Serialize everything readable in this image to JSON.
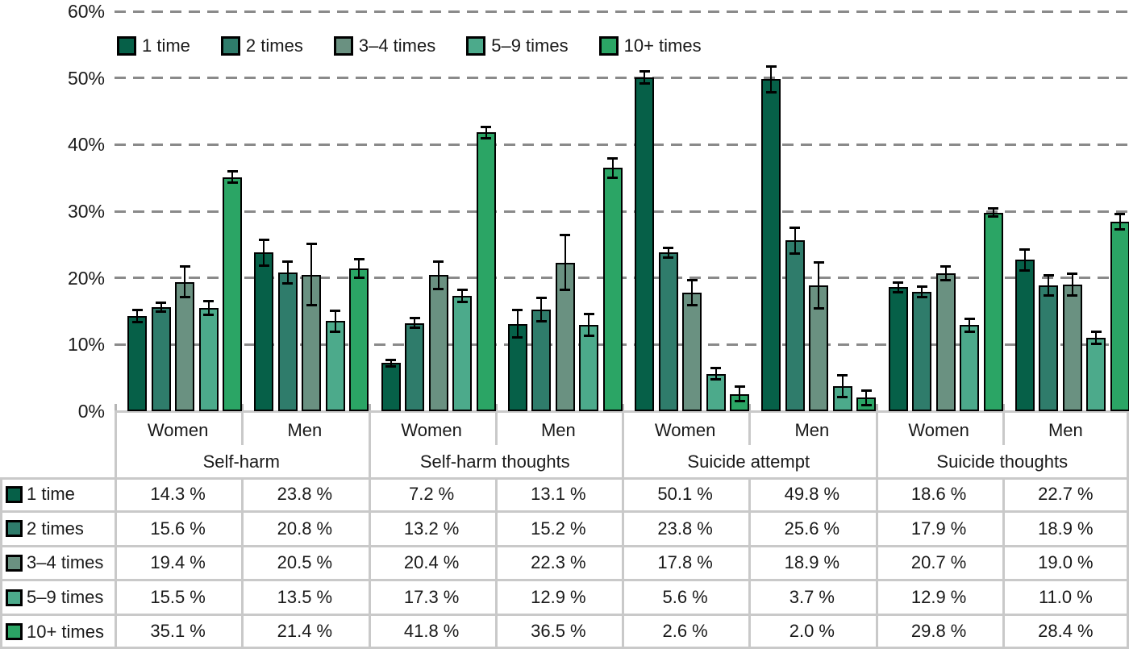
{
  "chart_data": {
    "type": "bar",
    "title": "",
    "categories": [
      "Self-harm",
      "Self-harm thoughts",
      "Suicide attempt",
      "Suicide thoughts"
    ],
    "subgroups": [
      "Women",
      "Men"
    ],
    "group_labels": [
      "Women",
      "Men",
      "Women",
      "Men",
      "Women",
      "Men",
      "Women",
      "Men"
    ],
    "xlabel": "",
    "ylabel": "",
    "ylim": [
      0,
      60
    ],
    "yticks": [
      "0%",
      "10%",
      "20%",
      "30%",
      "40%",
      "50%",
      "60%"
    ],
    "grid": "dashed-horizontal",
    "legend_position": "top-left-inside",
    "error_bars": true,
    "series": [
      {
        "name": "1 time",
        "color": "#066048",
        "values": [
          14.3,
          23.8,
          7.2,
          13.1,
          50.1,
          49.8,
          18.6,
          22.7
        ],
        "errors": [
          1.0,
          2.0,
          0.6,
          2.1,
          1.0,
          2.0,
          0.8,
          1.6
        ]
      },
      {
        "name": "2 times",
        "color": "#2f7c6b",
        "values": [
          15.6,
          20.8,
          13.2,
          15.2,
          23.8,
          25.6,
          17.9,
          18.9
        ],
        "errors": [
          0.7,
          1.7,
          0.8,
          1.8,
          0.8,
          2.0,
          0.8,
          1.6
        ]
      },
      {
        "name": "3–4 times",
        "color": "#6a9181",
        "values": [
          19.4,
          20.5,
          20.4,
          22.3,
          17.8,
          18.9,
          20.7,
          19.0
        ],
        "errors": [
          2.4,
          4.7,
          2.1,
          4.2,
          1.9,
          3.5,
          1.1,
          1.7
        ]
      },
      {
        "name": "5–9 times",
        "color": "#4caa8b",
        "values": [
          15.5,
          13.5,
          17.3,
          12.9,
          5.6,
          3.7,
          12.9,
          11.0
        ],
        "errors": [
          1.1,
          1.6,
          1.0,
          1.7,
          0.9,
          1.7,
          1.0,
          1.0
        ]
      },
      {
        "name": "10+ times",
        "color": "#2ba565",
        "values": [
          35.1,
          21.4,
          41.8,
          36.5,
          2.6,
          2.0,
          29.8,
          28.4
        ],
        "errors": [
          0.9,
          1.5,
          0.9,
          1.5,
          1.2,
          1.1,
          0.7,
          1.2
        ]
      }
    ]
  },
  "table": {
    "gender_headers": [
      "Women",
      "Men",
      "Women",
      "Men",
      "Women",
      "Men",
      "Women",
      "Men"
    ],
    "category_headers": [
      "Self-harm",
      "Self-harm thoughts",
      "Suicide attempt",
      "Suicide thoughts"
    ],
    "rows": [
      {
        "label": "1 time",
        "values": [
          "14.3 %",
          "23.8 %",
          "7.2 %",
          "13.1 %",
          "50.1 %",
          "49.8 %",
          "18.6 %",
          "22.7 %"
        ]
      },
      {
        "label": "2 times",
        "values": [
          "15.6 %",
          "20.8 %",
          "13.2 %",
          "15.2 %",
          "23.8 %",
          "25.6 %",
          "17.9 %",
          "18.9 %"
        ]
      },
      {
        "label": "3–4 times",
        "values": [
          "19.4 %",
          "20.5 %",
          "20.4 %",
          "22.3 %",
          "17.8 %",
          "18.9 %",
          "20.7 %",
          "19.0 %"
        ]
      },
      {
        "label": "5–9 times",
        "values": [
          "15.5 %",
          "13.5 %",
          "17.3 %",
          "12.9 %",
          "5.6 %",
          "3.7 %",
          "12.9 %",
          "11.0 %"
        ]
      },
      {
        "label": "10+ times",
        "values": [
          "35.1 %",
          "21.4 %",
          "41.8 %",
          "36.5 %",
          "2.6 %",
          "2.0 %",
          "29.8 %",
          "28.4 %"
        ]
      }
    ]
  },
  "colors": {
    "grid_line": "#8a8a8a",
    "table_border": "#c9c9c9",
    "bar_outline": "#000000",
    "text": "#1a1a1a"
  }
}
